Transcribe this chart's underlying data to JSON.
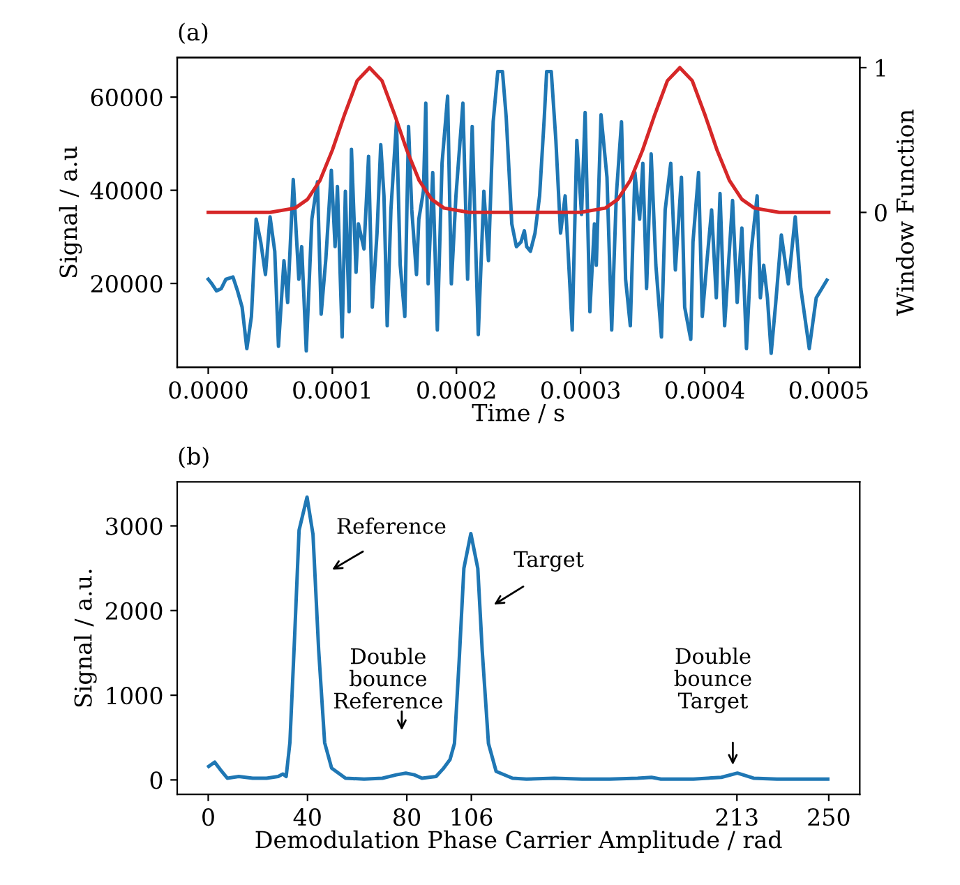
{
  "chart_data": [
    {
      "type": "line",
      "xlabel": "Time / s",
      "ylabel": "Signal / a.u",
      "y2label": "Window Function",
      "annotations": [
        "(a)"
      ],
      "xlim": [
        -2.5e-05,
        0.000525
      ],
      "xticks": [
        {
          "value": 0,
          "label": "0.0000"
        },
        {
          "value": 0.0001,
          "label": "0.0001"
        },
        {
          "value": 0.0002,
          "label": "0.0002"
        },
        {
          "value": 0.0003,
          "label": "0.0003"
        },
        {
          "value": 0.0004,
          "label": "0.0004"
        },
        {
          "value": 0.0005,
          "label": "0.0005"
        }
      ],
      "ylim": [
        2000,
        68500
      ],
      "yticks": [
        20000,
        40000,
        60000
      ],
      "y2lim": [
        -1.07,
        1.07
      ],
      "y2ticks": [
        0,
        1
      ],
      "grid": false,
      "series": [
        {
          "color": "#1f77b4",
          "axis": "y",
          "x": [
            0.0,
            3e-06,
            6.7e-06,
            1.05e-05,
            1.42e-05,
            1.99e-05,
            2.36e-05,
            2.73e-05,
            3.11e-05,
            3.48e-05,
            3.86e-05,
            4.23e-05,
            4.61e-05,
            4.98e-05,
            5.36e-05,
            5.66e-05,
            6.1e-05,
            6.4e-05,
            6.85e-05,
            7.3e-05,
            7.53e-05,
            7.9e-05,
            8.35e-05,
            8.8e-05,
            9.1e-05,
            9.48e-05,
            9.92e-05,
            0.0001022,
            0.0001041,
            0.0001079,
            0.0001105,
            0.0001135,
            0.0001154,
            0.0001191,
            0.000121,
            0.0001255,
            0.0001292,
            0.0001322,
            0.000136,
            0.000139,
            0.0001416,
            0.0001442,
            0.0001472,
            0.0001517,
            0.0001547,
            0.0001584,
            0.0001614,
            0.000164,
            0.0001678,
            0.0001697,
            0.0001734,
            0.0001753,
            0.0001772,
            0.0001809,
            0.0001846,
            0.0001884,
            0.0001929,
            0.0001959,
            0.0001996,
            0.0002052,
            0.000209,
            0.0002127,
            0.0002176,
            0.0002221,
            0.0002258,
            0.0002296,
            0.0002333,
            0.0002371,
            0.0002401,
            0.0002446,
            0.0002483,
            0.000252,
            0.0002547,
            0.0002566,
            0.0002596,
            0.0002633,
            0.000267,
            0.0002708,
            0.0002727,
            0.0002764,
            0.0002801,
            0.0002839,
            0.0002876,
            0.0002933,
            0.000297,
            0.0003008,
            0.0003037,
            0.0003075,
            0.0003112,
            0.0003127,
            0.0003165,
            0.0003213,
            0.0003251,
            0.0003288,
            0.000333,
            0.0003363,
            0.0003401,
            0.0003438,
            0.0003476,
            0.0003502,
            0.0003532,
            0.0003569,
            0.0003607,
            0.0003652,
            0.0003682,
            0.0003727,
            0.0003764,
            0.0003813,
            0.0003839,
            0.0003888,
            0.0003906,
            0.0003951,
            0.0003981,
            0.0004019,
            0.0004056,
            0.0004094,
            0.0004124,
            0.0004161,
            0.0004187,
            0.0004225,
            0.0004262,
            0.00043,
            0.0004337,
            0.0004375,
            0.0004423,
            0.0004449,
            0.0004476,
            0.0004506,
            0.0004536,
            0.0004573,
            0.0004618,
            0.0004674,
            0.000473,
            0.0004775,
            0.0004843,
            0.0004899,
            0.0004985
          ],
          "values": [
            20900,
            19900,
            18400,
            18900,
            20900,
            21400,
            18400,
            14900,
            6000,
            12900,
            33800,
            28900,
            21900,
            34300,
            26900,
            6500,
            24900,
            15900,
            42300,
            20900,
            27900,
            5500,
            33800,
            41800,
            13400,
            25400,
            44300,
            27900,
            40800,
            8500,
            39800,
            13900,
            48800,
            22400,
            32800,
            27400,
            47300,
            14900,
            30800,
            49800,
            38800,
            10900,
            35800,
            54700,
            23900,
            12900,
            53700,
            35800,
            21900,
            33800,
            39800,
            58700,
            19900,
            43800,
            10000,
            45800,
            60200,
            19900,
            38800,
            58700,
            20900,
            53700,
            9000,
            39800,
            24900,
            54700,
            65500,
            65500,
            55700,
            32800,
            27900,
            28900,
            31300,
            27900,
            26900,
            30800,
            38800,
            55700,
            65500,
            65500,
            50800,
            30800,
            38800,
            10000,
            50700,
            34800,
            56700,
            13900,
            32800,
            23900,
            56200,
            42800,
            10000,
            38800,
            54700,
            20900,
            10900,
            43800,
            33800,
            45800,
            18900,
            47800,
            23900,
            8500,
            35800,
            45800,
            22900,
            42800,
            14900,
            8000,
            28900,
            43800,
            12900,
            24900,
            35800,
            16900,
            39300,
            10900,
            21900,
            37800,
            15900,
            31900,
            6000,
            26900,
            38800,
            16900,
            23900,
            16900,
            5000,
            15900,
            30400,
            19900,
            34300,
            18900,
            6000,
            16900,
            20700
          ]
        },
        {
          "color": "#d62728",
          "axis": "y2",
          "x": [
            0.0,
            5e-05,
            7e-05,
            8e-05,
            9e-05,
            0.0001,
            0.00011,
            0.00012,
            0.00013,
            0.00014,
            0.00015,
            0.00016,
            0.00017,
            0.00018,
            0.00019,
            0.00021,
            0.0003,
            0.00032,
            0.00033,
            0.00034,
            0.00035,
            0.00036,
            0.00037,
            0.00038,
            0.00039,
            0.0004,
            0.00041,
            0.00042,
            0.00043,
            0.00044,
            0.00046,
            0.0005
          ],
          "values": [
            0,
            0,
            0.03,
            0.09,
            0.22,
            0.43,
            0.68,
            0.91,
            1,
            0.91,
            0.68,
            0.43,
            0.22,
            0.09,
            0.03,
            0,
            0,
            0.03,
            0.09,
            0.22,
            0.43,
            0.68,
            0.91,
            1,
            0.91,
            0.68,
            0.43,
            0.22,
            0.09,
            0.03,
            0,
            0
          ]
        }
      ]
    },
    {
      "type": "line",
      "xlabel": "Demodulation Phase Carrier Amplitude / rad",
      "ylabel": "Signal / a.u.",
      "annotations": [
        "(b)",
        "Reference",
        "Target",
        "Double\nbounce\nReference",
        "Double\nbounce\nTarget"
      ],
      "xlim": [
        -12.5,
        262.5
      ],
      "xticks": [
        0,
        40,
        80,
        106,
        213,
        250
      ],
      "ylim": [
        -170,
        3520
      ],
      "yticks": [
        0,
        1000,
        2000,
        3000
      ],
      "grid": false,
      "series": [
        {
          "color": "#1f77b4",
          "axis": "y",
          "x": [
            0.2,
            2.6,
            4.9,
            7.7,
            12.3,
            17.9,
            23.5,
            28.2,
            30.1,
            31.4,
            32.9,
            34.8,
            36.6,
            39.8,
            42.2,
            44.5,
            46.9,
            49.7,
            55.3,
            62.8,
            70.2,
            75.8,
            79.6,
            83.0,
            86.1,
            91.8,
            94.6,
            97.4,
            99.2,
            101.1,
            103.0,
            105.8,
            108.6,
            110.4,
            112.9,
            116.0,
            122.6,
            128.2,
            139.4,
            150.6,
            161.8,
            173.0,
            178.6,
            182.4,
            195.5,
            206.7,
            213.2,
            219.7,
            229.1,
            249.6
          ],
          "values": [
            160,
            210,
            120,
            20,
            40,
            20,
            20,
            40,
            70,
            40,
            440,
            1690,
            2950,
            3340,
            2900,
            1530,
            440,
            140,
            20,
            10,
            20,
            60,
            80,
            60,
            20,
            40,
            130,
            240,
            430,
            1410,
            2500,
            2910,
            2500,
            1520,
            430,
            100,
            20,
            10,
            20,
            10,
            10,
            20,
            30,
            10,
            10,
            30,
            80,
            20,
            10,
            10
          ]
        }
      ]
    }
  ]
}
